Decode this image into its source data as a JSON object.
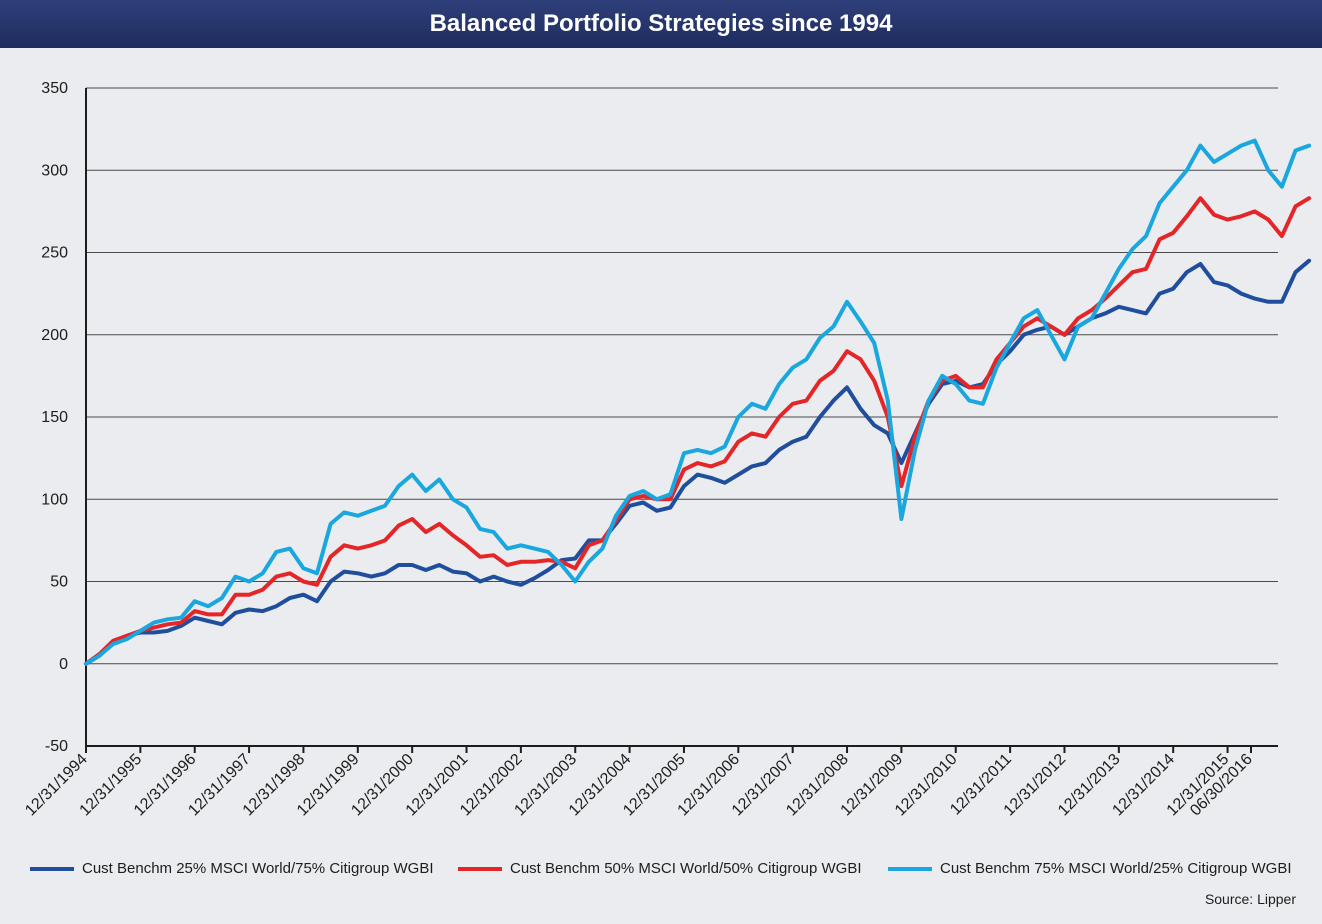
{
  "title": "Balanced Portfolio Strategies since 1994",
  "source": "Source: Lipper",
  "chart_data": {
    "type": "line",
    "ylim": [
      -50,
      350
    ],
    "yticks": [
      -50,
      0,
      50,
      100,
      150,
      200,
      250,
      300,
      350
    ],
    "grid": true,
    "legend_position": "bottom",
    "x_ticks": [
      "12/31/1994",
      "12/31/1995",
      "12/31/1996",
      "12/31/1997",
      "12/31/1998",
      "12/31/1999",
      "12/31/2000",
      "12/31/2001",
      "12/31/2002",
      "12/31/2003",
      "12/31/2004",
      "12/31/2005",
      "12/31/2006",
      "12/31/2007",
      "12/31/2008",
      "12/31/2009",
      "12/31/2010",
      "12/31/2011",
      "12/31/2012",
      "12/31/2013",
      "12/31/2014",
      "12/31/2015",
      "06/30/2016"
    ],
    "series": [
      {
        "name": "Cust Benchm 25% MSCI World/75% Citigroup WGBI",
        "color": "#1f4e9c",
        "points": [
          [
            1994.0,
            0
          ],
          [
            1994.25,
            5
          ],
          [
            1994.5,
            13
          ],
          [
            1994.75,
            17
          ],
          [
            1995.0,
            19
          ],
          [
            1995.25,
            19
          ],
          [
            1995.5,
            20
          ],
          [
            1995.75,
            23
          ],
          [
            1996.0,
            28
          ],
          [
            1996.25,
            26
          ],
          [
            1996.5,
            24
          ],
          [
            1996.75,
            31
          ],
          [
            1997.0,
            33
          ],
          [
            1997.25,
            32
          ],
          [
            1997.5,
            35
          ],
          [
            1997.75,
            40
          ],
          [
            1998.0,
            42
          ],
          [
            1998.25,
            38
          ],
          [
            1998.5,
            50
          ],
          [
            1998.75,
            56
          ],
          [
            1999.0,
            55
          ],
          [
            1999.25,
            53
          ],
          [
            1999.5,
            55
          ],
          [
            1999.75,
            60
          ],
          [
            2000.0,
            60
          ],
          [
            2000.25,
            57
          ],
          [
            2000.5,
            60
          ],
          [
            2000.75,
            56
          ],
          [
            2001.0,
            55
          ],
          [
            2001.25,
            50
          ],
          [
            2001.5,
            53
          ],
          [
            2001.75,
            50
          ],
          [
            2002.0,
            48
          ],
          [
            2002.25,
            52
          ],
          [
            2002.5,
            57
          ],
          [
            2002.75,
            63
          ],
          [
            2003.0,
            64
          ],
          [
            2003.25,
            75
          ],
          [
            2003.5,
            75
          ],
          [
            2003.75,
            85
          ],
          [
            2004.0,
            96
          ],
          [
            2004.25,
            98
          ],
          [
            2004.5,
            93
          ],
          [
            2004.75,
            95
          ],
          [
            2005.0,
            108
          ],
          [
            2005.25,
            115
          ],
          [
            2005.5,
            113
          ],
          [
            2005.75,
            110
          ],
          [
            2006.0,
            115
          ],
          [
            2006.25,
            120
          ],
          [
            2006.5,
            122
          ],
          [
            2006.75,
            130
          ],
          [
            2007.0,
            135
          ],
          [
            2007.25,
            138
          ],
          [
            2007.5,
            150
          ],
          [
            2007.75,
            160
          ],
          [
            2008.0,
            168
          ],
          [
            2008.25,
            155
          ],
          [
            2008.5,
            145
          ],
          [
            2008.75,
            140
          ],
          [
            2009.0,
            122
          ],
          [
            2009.25,
            140
          ],
          [
            2009.5,
            158
          ],
          [
            2009.75,
            170
          ],
          [
            2010.0,
            172
          ],
          [
            2010.25,
            168
          ],
          [
            2010.5,
            170
          ],
          [
            2010.75,
            182
          ],
          [
            2011.0,
            190
          ],
          [
            2011.25,
            200
          ],
          [
            2011.5,
            203
          ],
          [
            2011.75,
            205
          ],
          [
            2012.0,
            200
          ],
          [
            2012.25,
            205
          ],
          [
            2012.5,
            210
          ],
          [
            2012.75,
            213
          ],
          [
            2013.0,
            217
          ],
          [
            2013.25,
            215
          ],
          [
            2013.5,
            213
          ],
          [
            2013.75,
            225
          ],
          [
            2014.0,
            228
          ],
          [
            2014.25,
            238
          ],
          [
            2014.5,
            243
          ],
          [
            2014.75,
            232
          ],
          [
            2015.0,
            230
          ],
          [
            2015.25,
            225
          ],
          [
            2015.5,
            222
          ],
          [
            2015.75,
            220
          ],
          [
            2016.0,
            220
          ],
          [
            2016.25,
            238
          ],
          [
            2016.5,
            245
          ]
        ]
      },
      {
        "name": "Cust Benchm 50% MSCI World/50% Citigroup WGBI",
        "color": "#e42629",
        "points": [
          [
            1994.0,
            0
          ],
          [
            1994.25,
            6
          ],
          [
            1994.5,
            14
          ],
          [
            1994.75,
            17
          ],
          [
            1995.0,
            20
          ],
          [
            1995.25,
            22
          ],
          [
            1995.5,
            24
          ],
          [
            1995.75,
            25
          ],
          [
            1996.0,
            32
          ],
          [
            1996.25,
            30
          ],
          [
            1996.5,
            30
          ],
          [
            1996.75,
            42
          ],
          [
            1997.0,
            42
          ],
          [
            1997.25,
            45
          ],
          [
            1997.5,
            53
          ],
          [
            1997.75,
            55
          ],
          [
            1998.0,
            50
          ],
          [
            1998.25,
            48
          ],
          [
            1998.5,
            65
          ],
          [
            1998.75,
            72
          ],
          [
            1999.0,
            70
          ],
          [
            1999.25,
            72
          ],
          [
            1999.5,
            75
          ],
          [
            1999.75,
            84
          ],
          [
            2000.0,
            88
          ],
          [
            2000.25,
            80
          ],
          [
            2000.5,
            85
          ],
          [
            2000.75,
            78
          ],
          [
            2001.0,
            72
          ],
          [
            2001.25,
            65
          ],
          [
            2001.5,
            66
          ],
          [
            2001.75,
            60
          ],
          [
            2002.0,
            62
          ],
          [
            2002.25,
            62
          ],
          [
            2002.5,
            63
          ],
          [
            2002.75,
            62
          ],
          [
            2003.0,
            58
          ],
          [
            2003.25,
            72
          ],
          [
            2003.5,
            75
          ],
          [
            2003.75,
            87
          ],
          [
            2004.0,
            100
          ],
          [
            2004.25,
            102
          ],
          [
            2004.5,
            100
          ],
          [
            2004.75,
            100
          ],
          [
            2005.0,
            118
          ],
          [
            2005.25,
            122
          ],
          [
            2005.5,
            120
          ],
          [
            2005.75,
            123
          ],
          [
            2006.0,
            135
          ],
          [
            2006.25,
            140
          ],
          [
            2006.5,
            138
          ],
          [
            2006.75,
            150
          ],
          [
            2007.0,
            158
          ],
          [
            2007.25,
            160
          ],
          [
            2007.5,
            172
          ],
          [
            2007.75,
            178
          ],
          [
            2008.0,
            190
          ],
          [
            2008.25,
            185
          ],
          [
            2008.5,
            172
          ],
          [
            2008.75,
            150
          ],
          [
            2009.0,
            108
          ],
          [
            2009.25,
            138
          ],
          [
            2009.5,
            160
          ],
          [
            2009.75,
            172
          ],
          [
            2010.0,
            175
          ],
          [
            2010.25,
            168
          ],
          [
            2010.5,
            168
          ],
          [
            2010.75,
            185
          ],
          [
            2011.0,
            195
          ],
          [
            2011.25,
            205
          ],
          [
            2011.5,
            210
          ],
          [
            2011.75,
            205
          ],
          [
            2012.0,
            200
          ],
          [
            2012.25,
            210
          ],
          [
            2012.5,
            215
          ],
          [
            2012.75,
            222
          ],
          [
            2013.0,
            230
          ],
          [
            2013.25,
            238
          ],
          [
            2013.5,
            240
          ],
          [
            2013.75,
            258
          ],
          [
            2014.0,
            262
          ],
          [
            2014.25,
            272
          ],
          [
            2014.5,
            283
          ],
          [
            2014.75,
            273
          ],
          [
            2015.0,
            270
          ],
          [
            2015.25,
            272
          ],
          [
            2015.5,
            275
          ],
          [
            2015.75,
            270
          ],
          [
            2016.0,
            260
          ],
          [
            2016.25,
            278
          ],
          [
            2016.5,
            283
          ]
        ]
      },
      {
        "name": "Cust Benchm 75% MSCI World/25% Citigroup WGBI",
        "color": "#1aa7e0",
        "points": [
          [
            1994.0,
            0
          ],
          [
            1994.25,
            5
          ],
          [
            1994.5,
            12
          ],
          [
            1994.75,
            15
          ],
          [
            1995.0,
            20
          ],
          [
            1995.25,
            25
          ],
          [
            1995.5,
            27
          ],
          [
            1995.75,
            28
          ],
          [
            1996.0,
            38
          ],
          [
            1996.25,
            35
          ],
          [
            1996.5,
            40
          ],
          [
            1996.75,
            53
          ],
          [
            1997.0,
            50
          ],
          [
            1997.25,
            55
          ],
          [
            1997.5,
            68
          ],
          [
            1997.75,
            70
          ],
          [
            1998.0,
            58
          ],
          [
            1998.25,
            55
          ],
          [
            1998.5,
            85
          ],
          [
            1998.75,
            92
          ],
          [
            1999.0,
            90
          ],
          [
            1999.25,
            93
          ],
          [
            1999.5,
            96
          ],
          [
            1999.75,
            108
          ],
          [
            2000.0,
            115
          ],
          [
            2000.25,
            105
          ],
          [
            2000.5,
            112
          ],
          [
            2000.75,
            100
          ],
          [
            2001.0,
            95
          ],
          [
            2001.25,
            82
          ],
          [
            2001.5,
            80
          ],
          [
            2001.75,
            70
          ],
          [
            2002.0,
            72
          ],
          [
            2002.25,
            70
          ],
          [
            2002.5,
            68
          ],
          [
            2002.75,
            60
          ],
          [
            2003.0,
            50
          ],
          [
            2003.25,
            62
          ],
          [
            2003.5,
            70
          ],
          [
            2003.75,
            90
          ],
          [
            2004.0,
            102
          ],
          [
            2004.25,
            105
          ],
          [
            2004.5,
            100
          ],
          [
            2004.75,
            103
          ],
          [
            2005.0,
            128
          ],
          [
            2005.25,
            130
          ],
          [
            2005.5,
            128
          ],
          [
            2005.75,
            132
          ],
          [
            2006.0,
            150
          ],
          [
            2006.25,
            158
          ],
          [
            2006.5,
            155
          ],
          [
            2006.75,
            170
          ],
          [
            2007.0,
            180
          ],
          [
            2007.25,
            185
          ],
          [
            2007.5,
            198
          ],
          [
            2007.75,
            205
          ],
          [
            2008.0,
            220
          ],
          [
            2008.25,
            208
          ],
          [
            2008.5,
            195
          ],
          [
            2008.75,
            160
          ],
          [
            2009.0,
            88
          ],
          [
            2009.25,
            130
          ],
          [
            2009.5,
            160
          ],
          [
            2009.75,
            175
          ],
          [
            2010.0,
            170
          ],
          [
            2010.25,
            160
          ],
          [
            2010.5,
            158
          ],
          [
            2010.75,
            180
          ],
          [
            2011.0,
            195
          ],
          [
            2011.25,
            210
          ],
          [
            2011.5,
            215
          ],
          [
            2011.75,
            200
          ],
          [
            2012.0,
            185
          ],
          [
            2012.25,
            205
          ],
          [
            2012.5,
            210
          ],
          [
            2012.75,
            225
          ],
          [
            2013.0,
            240
          ],
          [
            2013.25,
            252
          ],
          [
            2013.5,
            260
          ],
          [
            2013.75,
            280
          ],
          [
            2014.0,
            290
          ],
          [
            2014.25,
            300
          ],
          [
            2014.5,
            315
          ],
          [
            2014.75,
            305
          ],
          [
            2015.0,
            310
          ],
          [
            2015.25,
            315
          ],
          [
            2015.5,
            318
          ],
          [
            2015.75,
            300
          ],
          [
            2016.0,
            290
          ],
          [
            2016.25,
            312
          ],
          [
            2016.5,
            315
          ]
        ]
      }
    ]
  }
}
